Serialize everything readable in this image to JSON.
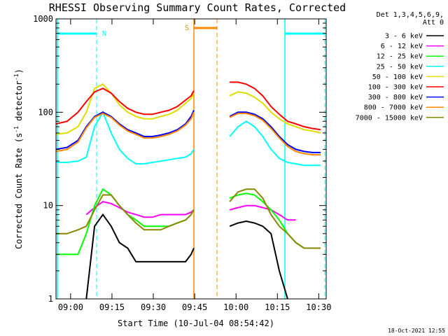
{
  "chart_data": {
    "type": "line",
    "title": "RHESSI Observing Summary Count Rates, Corrected",
    "xlabel": "Start Time (10-Jul-04 08:54:42)",
    "ylabel_main": "Corrected Count Rate (s",
    "ylabel_sup1": "-1",
    "ylabel_mid": " detector",
    "ylabel_sup2": "-1",
    "ylabel_end": ")",
    "yscale": "log",
    "xlim_minutes": [
      0,
      98
    ],
    "ylim": [
      1,
      1000
    ],
    "xticks": [
      {
        "label": "09:00",
        "minutes": 5.3
      },
      {
        "label": "09:15",
        "minutes": 20.3
      },
      {
        "label": "09:30",
        "minutes": 35.3
      },
      {
        "label": "09:45",
        "minutes": 50.3
      },
      {
        "label": "10:00",
        "minutes": 65.3
      },
      {
        "label": "10:15",
        "minutes": 80.3
      },
      {
        "label": "10:30",
        "minutes": 95.3
      }
    ],
    "yticks": [
      {
        "label": "1",
        "value": 1
      },
      {
        "label": "10",
        "value": 10
      },
      {
        "label": "100",
        "value": 100
      },
      {
        "label": "1000",
        "value": 1000
      }
    ],
    "legend_header": [
      "Det 1,3,4,5,6,9,",
      "Att 0"
    ],
    "legend_position": "right",
    "x": [
      0,
      4,
      8,
      11,
      14,
      17,
      20,
      23,
      26,
      29,
      32,
      35,
      38,
      41,
      44,
      47,
      49,
      50,
      53,
      57,
      60,
      63,
      66,
      69,
      72,
      75,
      78,
      81,
      84,
      87,
      90,
      93,
      96
    ],
    "series": [
      {
        "name": "3 - 6 keV",
        "color": "#000000",
        "values": [
          null,
          null,
          null,
          1,
          6,
          8,
          6,
          4,
          3.5,
          2.5,
          2.5,
          2.5,
          2.5,
          2.5,
          2.5,
          2.5,
          3,
          3.5,
          null,
          null,
          null,
          6,
          6.5,
          6.8,
          6.5,
          6,
          5,
          2,
          1,
          null,
          null,
          null,
          null
        ]
      },
      {
        "name": "6 - 12 keV",
        "color": "#ff00ff",
        "values": [
          null,
          null,
          null,
          8,
          9.5,
          11,
          10.5,
          9.5,
          8.5,
          8,
          7.5,
          7.5,
          8,
          8,
          8,
          8,
          8.5,
          9,
          null,
          null,
          null,
          9,
          9.5,
          10,
          10,
          9.5,
          9,
          8,
          7,
          7,
          null,
          null,
          null
        ]
      },
      {
        "name": "12 - 25 keV",
        "color": "#00ff00",
        "values": [
          3,
          3,
          3,
          5,
          10,
          15,
          13,
          10,
          8,
          7,
          6,
          6,
          6,
          6,
          6.5,
          7,
          8,
          9,
          null,
          null,
          null,
          12,
          13,
          13.5,
          13,
          11,
          9,
          7,
          5,
          4,
          3.5,
          null,
          null
        ]
      },
      {
        "name": "25 - 50 keV",
        "color": "#00ffff",
        "values": [
          29,
          29,
          30,
          33,
          70,
          100,
          60,
          40,
          32,
          28,
          28,
          29,
          30,
          31,
          32,
          33,
          36,
          40,
          null,
          null,
          null,
          55,
          70,
          80,
          70,
          55,
          40,
          32,
          29,
          28,
          27,
          27,
          27
        ]
      },
      {
        "name": "50 - 100 keV",
        "color": "#dddd00",
        "values": [
          58,
          60,
          70,
          100,
          180,
          200,
          160,
          120,
          100,
          90,
          85,
          85,
          90,
          95,
          105,
          125,
          140,
          160,
          null,
          null,
          null,
          150,
          165,
          160,
          145,
          125,
          100,
          85,
          75,
          70,
          65,
          63,
          60
        ]
      },
      {
        "name": "100 - 300 keV",
        "color": "#ff0000",
        "values": [
          75,
          80,
          100,
          130,
          165,
          180,
          160,
          130,
          110,
          100,
          95,
          95,
          100,
          105,
          115,
          135,
          150,
          170,
          null,
          null,
          null,
          210,
          210,
          200,
          180,
          150,
          115,
          95,
          80,
          75,
          70,
          67,
          65
        ]
      },
      {
        "name": "300 - 800 keV",
        "color": "#0000ff",
        "values": [
          40,
          42,
          50,
          70,
          90,
          100,
          90,
          75,
          65,
          60,
          55,
          55,
          57,
          60,
          65,
          75,
          90,
          105,
          null,
          null,
          null,
          90,
          100,
          100,
          95,
          85,
          70,
          55,
          45,
          40,
          38,
          37,
          37
        ]
      },
      {
        "name": "800 - 7000 keV",
        "color": "#ff8800",
        "values": [
          38,
          40,
          48,
          68,
          88,
          97,
          88,
          73,
          63,
          58,
          53,
          53,
          55,
          58,
          63,
          73,
          85,
          100,
          null,
          null,
          null,
          88,
          97,
          97,
          92,
          82,
          67,
          53,
          43,
          38,
          36,
          35,
          35
        ]
      },
      {
        "name": "7000 - 15000 keV",
        "color": "#888800",
        "values": [
          5,
          5,
          5.5,
          6,
          9,
          13,
          13,
          10,
          8,
          6.5,
          5.5,
          5.5,
          5.5,
          6,
          6.5,
          7,
          8,
          9,
          null,
          null,
          null,
          11,
          14,
          15,
          15,
          12,
          8,
          6,
          5,
          4,
          3.5,
          3.5,
          3.5
        ]
      }
    ],
    "annotations": [
      {
        "text": "N",
        "color": "#00ffff"
      },
      {
        "text": "S",
        "color": "#ff8800"
      }
    ],
    "footer_date": "18-Oct-2021 12:55"
  }
}
